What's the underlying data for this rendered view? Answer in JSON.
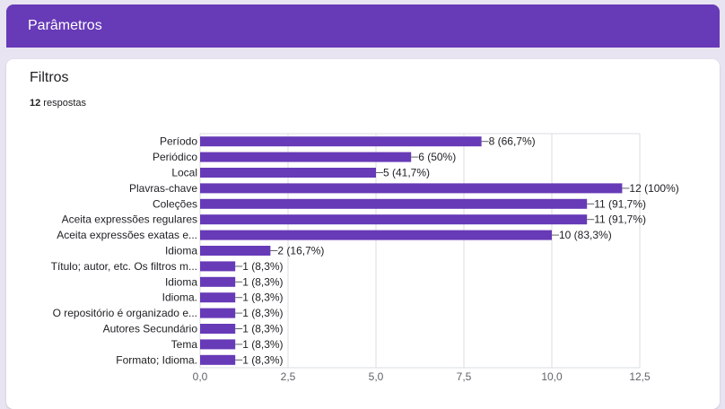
{
  "header": {
    "title": "Parâmetros"
  },
  "question": {
    "title": "Filtros",
    "response_count": "12",
    "response_label": " respostas"
  },
  "colors": {
    "bar": "#673ab7",
    "header": "#673ab7",
    "grid": "#dadce0"
  },
  "chart_data": {
    "type": "bar",
    "orientation": "horizontal",
    "categories": [
      "Período",
      "Periódico",
      "Local",
      "Plavras-chave",
      "Coleções",
      "Aceita expressões regulares",
      "Aceita expressões exatas e...",
      "Idioma",
      "Título; autor, etc. Os filtros m...",
      "Idioma",
      "Idioma.",
      "O repositório é organizado e...",
      "Autores Secundário",
      "Tema",
      "Formato; Idioma."
    ],
    "values": [
      8,
      6,
      5,
      12,
      11,
      11,
      10,
      2,
      1,
      1,
      1,
      1,
      1,
      1,
      1
    ],
    "data_labels": [
      "8 (66,7%)",
      "6 (50%)",
      "5 (41,7%)",
      "12 (100%)",
      "11 (91,7%)",
      "11 (91,7%)",
      "10 (83,3%)",
      "2 (16,7%)",
      "1 (8,3%)",
      "1 (8,3%)",
      "1 (8,3%)",
      "1 (8,3%)",
      "1 (8,3%)",
      "1 (8,3%)",
      "1 (8,3%)"
    ],
    "xlim": [
      0,
      12.5
    ],
    "xticks": [
      "0,0",
      "2,5",
      "5,0",
      "7,5",
      "10,0",
      "12,5"
    ],
    "grid": true
  }
}
